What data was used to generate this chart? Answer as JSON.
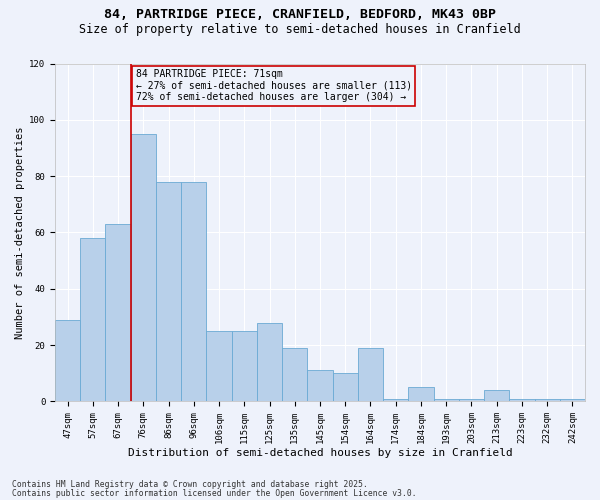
{
  "title1": "84, PARTRIDGE PIECE, CRANFIELD, BEDFORD, MK43 0BP",
  "title2": "Size of property relative to semi-detached houses in Cranfield",
  "xlabel": "Distribution of semi-detached houses by size in Cranfield",
  "ylabel": "Number of semi-detached properties",
  "footnote1": "Contains HM Land Registry data © Crown copyright and database right 2025.",
  "footnote2": "Contains public sector information licensed under the Open Government Licence v3.0.",
  "annotation_line1": "84 PARTRIDGE PIECE: 71sqm",
  "annotation_line2": "← 27% of semi-detached houses are smaller (113)",
  "annotation_line3": "72% of semi-detached houses are larger (304) →",
  "bar_color": "#b8d0ea",
  "bar_edge_color": "#6aaad4",
  "vline_color": "#cc0000",
  "vline_x": 2.5,
  "annotation_box_color": "#cc0000",
  "background_color": "#eef2fb",
  "categories": [
    "47sqm",
    "57sqm",
    "67sqm",
    "76sqm",
    "86sqm",
    "96sqm",
    "106sqm",
    "115sqm",
    "125sqm",
    "135sqm",
    "145sqm",
    "154sqm",
    "164sqm",
    "174sqm",
    "184sqm",
    "193sqm",
    "203sqm",
    "213sqm",
    "223sqm",
    "232sqm",
    "242sqm"
  ],
  "values": [
    29,
    58,
    63,
    95,
    78,
    78,
    25,
    25,
    28,
    19,
    11,
    10,
    19,
    1,
    5,
    1,
    1,
    4,
    1,
    1,
    1
  ],
  "ylim": [
    0,
    120
  ],
  "yticks": [
    0,
    20,
    40,
    60,
    80,
    100,
    120
  ],
  "title1_fontsize": 9.5,
  "title2_fontsize": 8.5,
  "xlabel_fontsize": 8,
  "ylabel_fontsize": 7.5,
  "tick_fontsize": 6.5,
  "annotation_fontsize": 7,
  "footnote_fontsize": 5.8
}
